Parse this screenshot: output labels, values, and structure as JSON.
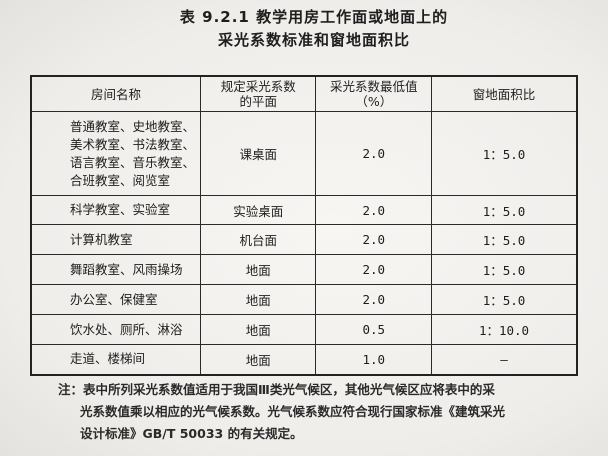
{
  "title_line1": "表 9.2.1   教学用房工作面或地面上的",
  "title_line2": "采光系数标准和窗地面积比",
  "table": {
    "headers": [
      "房间名称",
      "规定采光系数\n的平面",
      "采光系数最低值\n（%）",
      "窗地面积比"
    ],
    "rows": [
      [
        "普通教室、史地教室、\n美术教室、书法教室、\n语言教室、音乐教室、\n合班教室、阅览室",
        "课桌面",
        "2.0",
        "1：5.0"
      ],
      [
        "科学教室、实验室",
        "实验桌面",
        "2.0",
        "1：5.0"
      ],
      [
        "计算机教室",
        "机台面",
        "2.0",
        "1：5.0"
      ],
      [
        "舞蹈教室、风雨操场",
        "地面",
        "2.0",
        "1：5.0"
      ],
      [
        "办公室、保健室",
        "地面",
        "2.0",
        "1：5.0"
      ],
      [
        "饮水处、厕所、淋浴",
        "地面",
        "0.5",
        "1：10.0"
      ],
      [
        "走道、楼梯间",
        "地面",
        "1.0",
        "—"
      ]
    ]
  },
  "note": {
    "line1": "注：表中所列采光系数值适用于我国Ⅲ类光气候区，其他光气候区应将表中的采",
    "line2": "光系数值乘以相应的光气候系数。光气候系数应符合现行国家标准《建筑采光",
    "line3": "设计标准》GB/T 50033 的有关规定。"
  }
}
